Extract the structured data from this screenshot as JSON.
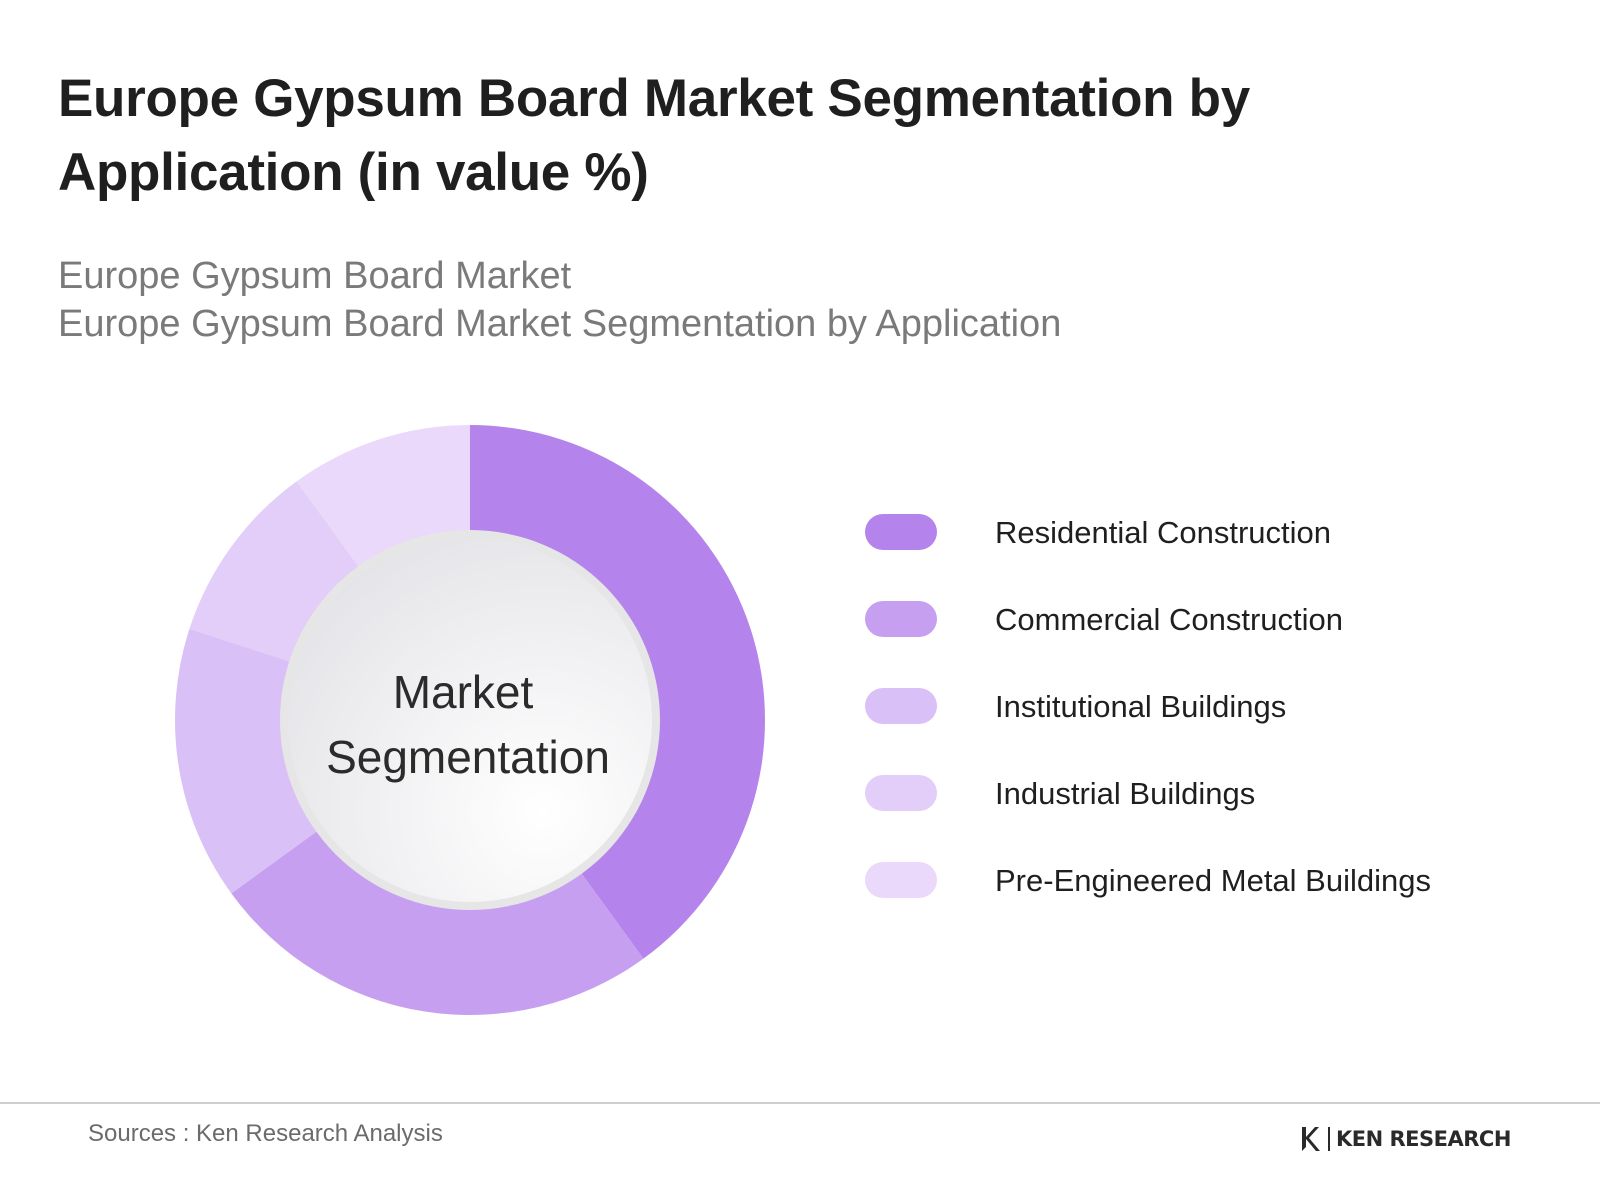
{
  "page": {
    "title": "Europe Gypsum Board Market Segmentation by Application (in value %)",
    "subtitle_line1": "Europe Gypsum Board Market",
    "subtitle_line2": "Europe Gypsum Board Market Segmentation by Application",
    "source": "Sources : Ken Research Analysis",
    "logo_text": "KEN RESEARCH",
    "logo_icon": "ken-research-k-icon"
  },
  "chart_data": {
    "type": "pie",
    "style": "donut",
    "center_label_line1": "Market",
    "center_label_line2": "Segmentation",
    "legend_position": "right",
    "slices": [
      {
        "label": "Residential Construction",
        "value": 40,
        "color": "#b583ec"
      },
      {
        "label": "Commercial Construction",
        "value": 25,
        "color": "#c79ff0"
      },
      {
        "label": "Institutional Buildings",
        "value": 15,
        "color": "#d9c0f6"
      },
      {
        "label": "Industrial Buildings",
        "value": 10,
        "color": "#e2cef8"
      },
      {
        "label": "Pre-Engineered Metal Buildings",
        "value": 10,
        "color": "#ead9fa"
      }
    ]
  }
}
